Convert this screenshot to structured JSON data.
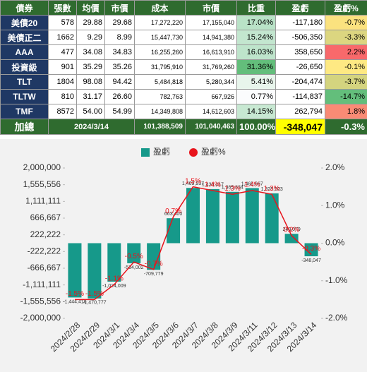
{
  "table": {
    "header": [
      "債券",
      "張數",
      "均價",
      "市價",
      "成本",
      "市價",
      "比重",
      "盈虧",
      "盈虧%"
    ],
    "rows": [
      [
        "美債20",
        "578",
        "29.88",
        "29.68",
        "17,272,220",
        "17,155,040",
        "17.04%",
        "-117,180",
        "-0.7%"
      ],
      [
        "美債正二",
        "1662",
        "9.29",
        "8.99",
        "15,447,730",
        "14,941,380",
        "15.24%",
        "-506,350",
        "-3.3%"
      ],
      [
        "AAA",
        "477",
        "34.08",
        "34.83",
        "16,255,260",
        "16,613,910",
        "16.03%",
        "358,650",
        "2.2%"
      ],
      [
        "投資級",
        "901",
        "35.29",
        "35.26",
        "31,795,910",
        "31,769,260",
        "31.36%",
        "-26,650",
        "-0.1%"
      ],
      [
        "TLT",
        "1804",
        "98.08",
        "94.42",
        "5,484,818",
        "5,280,344",
        "5.41%",
        "-204,474",
        "-3.7%"
      ],
      [
        "TLTW",
        "810",
        "31.17",
        "26.60",
        "782,763",
        "667,926",
        "0.77%",
        "-114,837",
        "-14.7%"
      ],
      [
        "TMF",
        "8572",
        "54.00",
        "54.99",
        "14,349,808",
        "14,612,603",
        "14.15%",
        "262,794",
        "1.8%"
      ]
    ],
    "total": [
      "加總",
      "2024/3/14",
      "101,388,509",
      "101,040,463",
      "100.00%",
      "-348,047",
      "-0.3%"
    ]
  },
  "chart_data": {
    "type": "bar_line",
    "categories": [
      "2024/2/28",
      "2024/2/29",
      "2024/3/1",
      "2024/3/4",
      "2024/3/5",
      "2024/3/6",
      "2024/3/7",
      "2024/3/8",
      "2024/3/9",
      "2024/3/11",
      "2024/3/12",
      "2024/3/13",
      "2024/3/14"
    ],
    "series": [
      {
        "name": "盈虧",
        "type": "bar",
        "color": "#16998a",
        "values": [
          -1444416,
          -1470777,
          -1024009,
          -534002,
          -709779,
          663400,
          1469937,
          1438417,
          1365634,
          1465667,
          1325523,
          249079,
          -348047
        ],
        "value_labels": [
          "-1,444,416",
          "-1,470,777",
          "-1,024,009",
          "-534,002",
          "-709,779",
          "663,400",
          "1,469,937",
          "1,438,417",
          "1,365,634",
          "1,465,667",
          "1,325,523",
          "249,079",
          "-348,047"
        ]
      },
      {
        "name": "盈虧%",
        "type": "line",
        "axis": "y2",
        "color": "#e8141c",
        "values": [
          -1.5,
          -1.5,
          -1.1,
          -0.5,
          -0.7,
          0.7,
          1.5,
          1.4,
          1.3,
          1.4,
          1.3,
          0.2,
          -0.3
        ],
        "value_labels": [
          "-1.5%",
          "-1.5%",
          "-1.1%",
          "-0.5%",
          "-0.7%",
          "0.7%",
          "1.5%",
          "1.4%",
          "1.3%",
          "1.4%",
          "1.3%",
          "0.2%",
          "-0.3%"
        ]
      }
    ],
    "ylim": [
      -2000000,
      2000000
    ],
    "yticks": [
      {
        "value": 2000000,
        "label": "2,000,000"
      },
      {
        "value": 1555556,
        "label": "1,555,556"
      },
      {
        "value": 1111111,
        "label": "1,111,111"
      },
      {
        "value": 666667,
        "label": "666,667"
      },
      {
        "value": 222222,
        "label": "222,222"
      },
      {
        "value": -222222,
        "label": "-222,222"
      },
      {
        "value": -666667,
        "label": "-666,667"
      },
      {
        "value": -1111111,
        "label": "-1,111,111"
      },
      {
        "value": -1555556,
        "label": "-1,555,556"
      },
      {
        "value": -2000000,
        "label": "-2,000,000"
      }
    ],
    "y2lim": [
      -2,
      2
    ],
    "y2ticks": [
      {
        "value": 2,
        "label": "2.0%"
      },
      {
        "value": 1,
        "label": "1.0%"
      },
      {
        "value": 0,
        "label": "0.0%"
      },
      {
        "value": -1,
        "label": "-1.0%"
      },
      {
        "value": -2,
        "label": "-2.0%"
      }
    ]
  }
}
